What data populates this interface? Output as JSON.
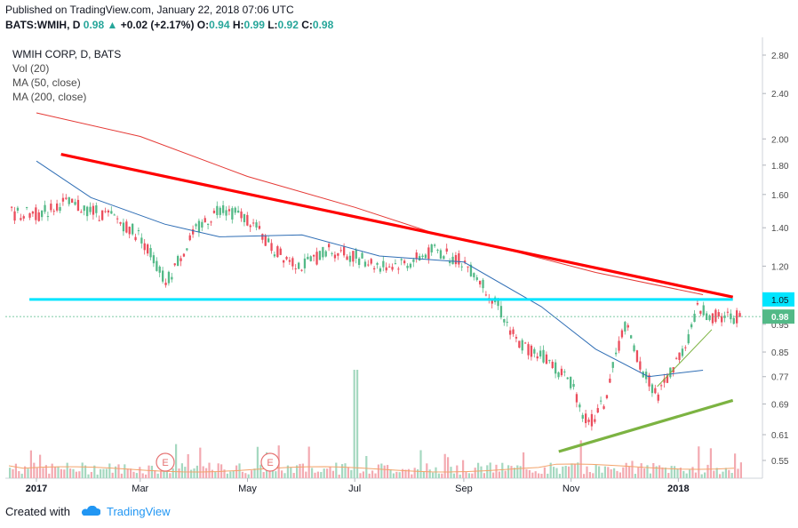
{
  "header": {
    "published": "Published on TradingView.com, January 22, 2018 07:06 UTC",
    "symbol": "BATS:WMIH, D",
    "last": "0.98",
    "change": "+0.02 (+2.17%)",
    "o_label": "O:",
    "o_val": "0.94",
    "h_label": "H:",
    "h_val": "0.99",
    "l_label": "L:",
    "l_val": "0.92",
    "c_label": "C:",
    "c_val": "0.98"
  },
  "legend": {
    "title": "WMIH CORP, D, BATS",
    "vol": "Vol (20)",
    "ma50": "MA (50, close)",
    "ma200": "MA (200, close)"
  },
  "footer": {
    "created_with": "Created with",
    "brand": "TradingView"
  },
  "colors": {
    "up": "#53b987",
    "down": "#eb4d5c",
    "resistance": "#ff0000",
    "support": "#7cb342",
    "level": "#00e5ff",
    "ma50": "#2f6eb5",
    "ma200": "#e53935"
  },
  "chart_data": {
    "type": "candlestick",
    "x_ticks": [
      "2017",
      "Mar",
      "May",
      "Jul",
      "Sep",
      "Nov",
      "2018"
    ],
    "y_ticks": [
      "2.80",
      "2.40",
      "2.00",
      "1.80",
      "1.60",
      "1.40",
      "1.20",
      "0.95",
      "0.85",
      "0.77",
      "0.69",
      "0.61",
      "0.55"
    ],
    "y_scale": "log",
    "ylim": [
      0.52,
      3.0
    ],
    "price_labels": {
      "level": "1.05",
      "last": "0.98"
    },
    "earnings_markers": [
      "E",
      "E"
    ],
    "close_series_approx": [
      [
        "2017-01-03",
        1.48
      ],
      [
        "2017-01-15",
        1.55
      ],
      [
        "2017-02-01",
        1.5
      ],
      [
        "2017-02-15",
        1.45
      ],
      [
        "2017-03-01",
        1.35
      ],
      [
        "2017-03-15",
        1.12
      ],
      [
        "2017-04-01",
        1.38
      ],
      [
        "2017-04-15",
        1.52
      ],
      [
        "2017-05-01",
        1.45
      ],
      [
        "2017-05-15",
        1.28
      ],
      [
        "2017-06-01",
        1.2
      ],
      [
        "2017-06-15",
        1.28
      ],
      [
        "2017-07-01",
        1.25
      ],
      [
        "2017-07-15",
        1.2
      ],
      [
        "2017-08-01",
        1.22
      ],
      [
        "2017-08-15",
        1.28
      ],
      [
        "2017-09-01",
        1.22
      ],
      [
        "2017-09-15",
        1.08
      ],
      [
        "2017-10-01",
        0.88
      ],
      [
        "2017-10-15",
        0.84
      ],
      [
        "2017-11-01",
        0.75
      ],
      [
        "2017-11-10",
        0.63
      ],
      [
        "2017-11-20",
        0.7
      ],
      [
        "2017-12-01",
        0.95
      ],
      [
        "2017-12-10",
        0.8
      ],
      [
        "2017-12-20",
        0.71
      ],
      [
        "2018-01-05",
        0.88
      ],
      [
        "2018-01-12",
        1.02
      ],
      [
        "2018-01-19",
        0.98
      ]
    ],
    "ma50_approx": [
      [
        "2017-01-01",
        1.83
      ],
      [
        "2017-02-01",
        1.58
      ],
      [
        "2017-03-15",
        1.42
      ],
      [
        "2017-04-15",
        1.35
      ],
      [
        "2017-06-01",
        1.36
      ],
      [
        "2017-07-15",
        1.25
      ],
      [
        "2017-09-01",
        1.22
      ],
      [
        "2017-10-15",
        1.02
      ],
      [
        "2017-11-15",
        0.86
      ],
      [
        "2017-12-15",
        0.77
      ],
      [
        "2018-01-15",
        0.79
      ]
    ],
    "ma200_approx": [
      [
        "2017-01-01",
        2.22
      ],
      [
        "2017-03-01",
        2.02
      ],
      [
        "2017-05-01",
        1.72
      ],
      [
        "2017-07-01",
        1.52
      ],
      [
        "2017-08-15",
        1.37
      ],
      [
        "2017-10-01",
        1.27
      ],
      [
        "2017-11-15",
        1.17
      ],
      [
        "2018-01-15",
        1.07
      ]
    ],
    "trendlines": [
      {
        "name": "resistance",
        "from": [
          "2017-01-15",
          1.88
        ],
        "to": [
          "2018-02-01",
          1.06
        ]
      },
      {
        "name": "support",
        "from": [
          "2017-10-25",
          0.57
        ],
        "to": [
          "2018-02-01",
          0.7
        ]
      },
      {
        "name": "horizontal",
        "from": [
          "2016-12-28",
          1.05
        ],
        "to": [
          "2018-02-01",
          1.05
        ]
      }
    ]
  }
}
